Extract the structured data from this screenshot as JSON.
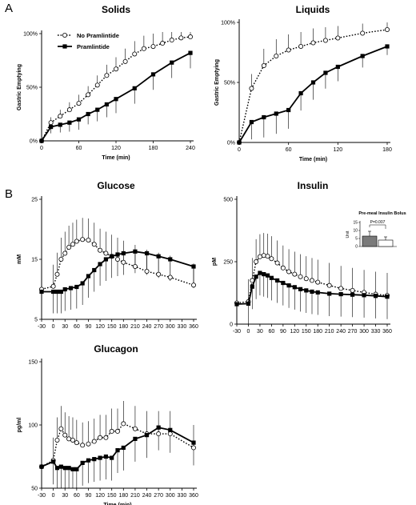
{
  "panel_labels": [
    "A",
    "B"
  ],
  "legend": {
    "no_pramlintide": "No Pramlintide",
    "pramlintide": "Pramlintide"
  },
  "chart_data": [
    {
      "id": "solids",
      "type": "line",
      "title": "Solids",
      "xlabel": "Time (min)",
      "ylabel": "Gastric Emptying",
      "xlim": [
        0,
        240
      ],
      "ylim": [
        0,
        100
      ],
      "xticks": [
        0,
        60,
        120,
        180,
        240
      ],
      "yticks": [
        0,
        50,
        100
      ],
      "ytick_labels": [
        "0%",
        "50%",
        "100%"
      ],
      "series": [
        {
          "name": "No Pramlintide",
          "style": "dotted-open-circle",
          "x": [
            0,
            15,
            30,
            45,
            60,
            75,
            90,
            105,
            120,
            135,
            150,
            165,
            180,
            195,
            210,
            225,
            240
          ],
          "y": [
            0,
            17,
            23,
            29,
            35,
            43,
            52,
            61,
            67,
            74,
            81,
            86,
            88,
            91,
            94,
            96,
            97
          ]
        },
        {
          "name": "Pramlintide",
          "style": "solid-filled-square",
          "x": [
            0,
            15,
            30,
            45,
            60,
            75,
            90,
            105,
            120,
            150,
            180,
            210,
            240
          ],
          "y": [
            0,
            13,
            15,
            17,
            20,
            25,
            29,
            34,
            39,
            49,
            62,
            73,
            82
          ]
        }
      ]
    },
    {
      "id": "liquids",
      "type": "line",
      "title": "Liquids",
      "xlabel": "Time (min)",
      "ylabel": "Gastric Emptying",
      "xlim": [
        0,
        180
      ],
      "ylim": [
        0,
        100
      ],
      "xticks": [
        0,
        60,
        120,
        180
      ],
      "yticks": [
        0,
        50,
        100
      ],
      "ytick_labels": [
        "0%",
        "50%",
        "100%"
      ],
      "series": [
        {
          "name": "No Pramlintide",
          "style": "dotted-open-circle",
          "x": [
            0,
            15,
            30,
            45,
            60,
            75,
            90,
            105,
            120,
            150,
            180
          ],
          "y": [
            0,
            45,
            64,
            72,
            77,
            80,
            83,
            85,
            87,
            91,
            94
          ]
        },
        {
          "name": "Pramlintide",
          "style": "solid-filled-square",
          "x": [
            0,
            15,
            30,
            45,
            60,
            75,
            90,
            105,
            120,
            150,
            180
          ],
          "y": [
            0,
            17,
            21,
            24,
            27,
            41,
            50,
            58,
            63,
            72,
            80
          ]
        }
      ]
    },
    {
      "id": "glucose",
      "type": "line",
      "title": "Glucose",
      "xlabel": "",
      "ylabel": "mM",
      "xlim": [
        -30,
        360
      ],
      "ylim": [
        5,
        25
      ],
      "xticks": [
        -30,
        0,
        30,
        60,
        90,
        120,
        150,
        180,
        210,
        240,
        270,
        300,
        330,
        360
      ],
      "yticks": [
        5,
        15,
        25
      ],
      "series": [
        {
          "name": "No Pramlintide",
          "style": "dotted-open-circle",
          "x": [
            -30,
            0,
            10,
            20,
            30,
            40,
            50,
            60,
            75,
            90,
            105,
            120,
            135,
            150,
            165,
            180,
            210,
            240,
            270,
            300,
            360
          ],
          "y": [
            10,
            10.5,
            12.5,
            15,
            16,
            17,
            17.5,
            18,
            18.3,
            18.2,
            17.5,
            16.5,
            16,
            15.5,
            15,
            14.5,
            13.8,
            13,
            12.5,
            12,
            10.7
          ]
        },
        {
          "name": "Pramlintide",
          "style": "solid-filled-square",
          "x": [
            -30,
            0,
            10,
            20,
            30,
            45,
            60,
            75,
            90,
            105,
            120,
            135,
            150,
            165,
            180,
            210,
            240,
            270,
            300,
            360
          ],
          "y": [
            9.6,
            9.6,
            9.6,
            9.6,
            10,
            10.2,
            10.4,
            11,
            12.2,
            13.2,
            14.2,
            15,
            15.5,
            15.8,
            16,
            16.3,
            16,
            15.5,
            15,
            13.8
          ]
        }
      ]
    },
    {
      "id": "insulin",
      "type": "line",
      "title": "Insulin",
      "xlabel": "",
      "ylabel": "pM",
      "xlim": [
        -30,
        360
      ],
      "ylim": [
        0,
        500
      ],
      "xticks": [
        -30,
        0,
        30,
        60,
        90,
        120,
        150,
        180,
        210,
        240,
        270,
        300,
        330,
        360
      ],
      "yticks": [
        0,
        250,
        500
      ],
      "series": [
        {
          "name": "No Pramlintide",
          "style": "dotted-open-circle",
          "x": [
            -30,
            0,
            10,
            20,
            30,
            40,
            50,
            60,
            75,
            90,
            105,
            120,
            135,
            150,
            165,
            180,
            210,
            240,
            270,
            300,
            330,
            360
          ],
          "y": [
            85,
            90,
            175,
            250,
            270,
            275,
            272,
            262,
            245,
            225,
            210,
            200,
            190,
            182,
            175,
            168,
            155,
            143,
            135,
            127,
            120,
            115
          ]
        },
        {
          "name": "Pramlintide",
          "style": "solid-filled-square",
          "x": [
            -30,
            0,
            10,
            20,
            30,
            40,
            50,
            60,
            75,
            90,
            105,
            120,
            135,
            150,
            165,
            180,
            210,
            240,
            270,
            300,
            330,
            360
          ],
          "y": [
            80,
            82,
            150,
            190,
            205,
            200,
            195,
            185,
            175,
            165,
            155,
            148,
            140,
            135,
            130,
            127,
            122,
            120,
            118,
            116,
            113,
            110
          ]
        }
      ]
    },
    {
      "id": "insulin_inset",
      "type": "bar",
      "title": "Pre-meal Insulin Bolus",
      "ylabel": "Unit",
      "ylim": [
        0,
        15
      ],
      "yticks": [
        0,
        5,
        10,
        15
      ],
      "annotation": "P=0.007",
      "categories": [
        "No Pramlintide",
        "Pramlintide"
      ],
      "values": [
        6.5,
        4
      ],
      "errors": [
        3,
        2
      ]
    },
    {
      "id": "glucagon",
      "type": "line",
      "title": "Glucagon",
      "xlabel": "Time (min)",
      "ylabel": "pg/ml",
      "xlim": [
        -30,
        360
      ],
      "ylim": [
        50,
        150
      ],
      "xticks": [
        -30,
        0,
        30,
        60,
        90,
        120,
        150,
        180,
        210,
        240,
        270,
        300,
        330,
        360
      ],
      "yticks": [
        50,
        100,
        150
      ],
      "series": [
        {
          "name": "No Pramlintide",
          "style": "dotted-open-circle",
          "x": [
            -30,
            0,
            10,
            20,
            30,
            40,
            50,
            60,
            75,
            90,
            105,
            120,
            135,
            150,
            165,
            180,
            210,
            240,
            270,
            300,
            360
          ],
          "y": [
            67,
            72,
            88,
            97,
            92,
            89,
            88,
            86,
            84,
            85,
            87,
            90,
            90,
            95,
            95,
            101,
            97,
            93,
            93,
            93,
            82
          ]
        },
        {
          "name": "Pramlintide",
          "style": "solid-filled-square",
          "x": [
            -30,
            0,
            10,
            20,
            30,
            40,
            50,
            60,
            75,
            90,
            105,
            120,
            135,
            150,
            165,
            180,
            210,
            240,
            270,
            300,
            360
          ],
          "y": [
            67,
            71,
            66,
            67,
            66,
            66,
            65,
            65,
            70,
            72,
            73,
            74,
            75,
            74,
            80,
            82,
            89,
            92,
            98,
            96,
            86
          ]
        }
      ]
    }
  ]
}
